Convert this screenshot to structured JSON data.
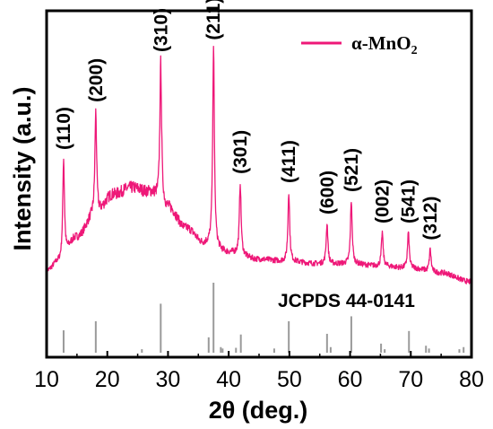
{
  "chart_data": {
    "type": "line",
    "xlabel": "2θ (deg.)",
    "ylabel": "Intensity (a.u.)",
    "xlim": [
      10,
      80
    ],
    "x_ticks": [
      "10",
      "20",
      "30",
      "40",
      "50",
      "60",
      "70",
      "80"
    ],
    "y_ticks_shown": false,
    "legend": {
      "label": "α-MnO",
      "subscript": "2",
      "position": "top-right"
    },
    "reference_label": "JCPDS 44-0141",
    "series": [
      {
        "name": "α-MnO2",
        "color": "#ee1878",
        "baseline": [
          [
            10,
            0.05
          ],
          [
            12,
            0.09
          ],
          [
            15,
            0.2
          ],
          [
            18,
            0.3
          ],
          [
            21,
            0.39
          ],
          [
            24,
            0.42
          ],
          [
            27,
            0.4
          ],
          [
            30,
            0.33
          ],
          [
            33,
            0.24
          ],
          [
            36,
            0.17
          ],
          [
            40,
            0.13
          ],
          [
            45,
            0.1
          ],
          [
            50,
            0.09
          ],
          [
            55,
            0.08
          ],
          [
            60,
            0.08
          ],
          [
            65,
            0.07
          ],
          [
            70,
            0.06
          ],
          [
            75,
            0.04
          ],
          [
            80,
            0.0
          ]
        ],
        "peaks": [
          {
            "x": 12.8,
            "height": 0.44,
            "label": "(110)"
          },
          {
            "x": 18.1,
            "height": 0.46,
            "label": "(200)"
          },
          {
            "x": 28.8,
            "height": 0.63,
            "label": "(310)"
          },
          {
            "x": 37.5,
            "height": 0.88,
            "label": "(211)"
          },
          {
            "x": 41.9,
            "height": 0.32,
            "label": "(301)"
          },
          {
            "x": 49.9,
            "height": 0.31,
            "label": "(411)"
          },
          {
            "x": 56.2,
            "height": 0.18,
            "label": "(600)"
          },
          {
            "x": 60.2,
            "height": 0.28,
            "label": "(521)"
          },
          {
            "x": 65.3,
            "height": 0.15,
            "label": "(002)"
          },
          {
            "x": 69.6,
            "height": 0.16,
            "label": "(541)"
          },
          {
            "x": 73.2,
            "height": 0.1,
            "label": "(312)"
          }
        ]
      }
    ],
    "reference_lines": [
      {
        "x": 12.8,
        "intensity": 0.32
      },
      {
        "x": 18.1,
        "intensity": 0.45
      },
      {
        "x": 25.7,
        "intensity": 0.05
      },
      {
        "x": 28.8,
        "intensity": 0.7
      },
      {
        "x": 36.7,
        "intensity": 0.22
      },
      {
        "x": 37.5,
        "intensity": 1.0
      },
      {
        "x": 38.7,
        "intensity": 0.08
      },
      {
        "x": 39.0,
        "intensity": 0.06
      },
      {
        "x": 41.2,
        "intensity": 0.07
      },
      {
        "x": 42.0,
        "intensity": 0.26
      },
      {
        "x": 47.5,
        "intensity": 0.06
      },
      {
        "x": 49.9,
        "intensity": 0.45
      },
      {
        "x": 56.2,
        "intensity": 0.27
      },
      {
        "x": 56.8,
        "intensity": 0.08
      },
      {
        "x": 60.2,
        "intensity": 0.52
      },
      {
        "x": 65.1,
        "intensity": 0.13
      },
      {
        "x": 65.7,
        "intensity": 0.05
      },
      {
        "x": 69.7,
        "intensity": 0.31
      },
      {
        "x": 72.5,
        "intensity": 0.1
      },
      {
        "x": 73.0,
        "intensity": 0.06
      },
      {
        "x": 78.0,
        "intensity": 0.05
      },
      {
        "x": 78.7,
        "intensity": 0.08
      }
    ],
    "reference_color": "#9a9a9a"
  }
}
